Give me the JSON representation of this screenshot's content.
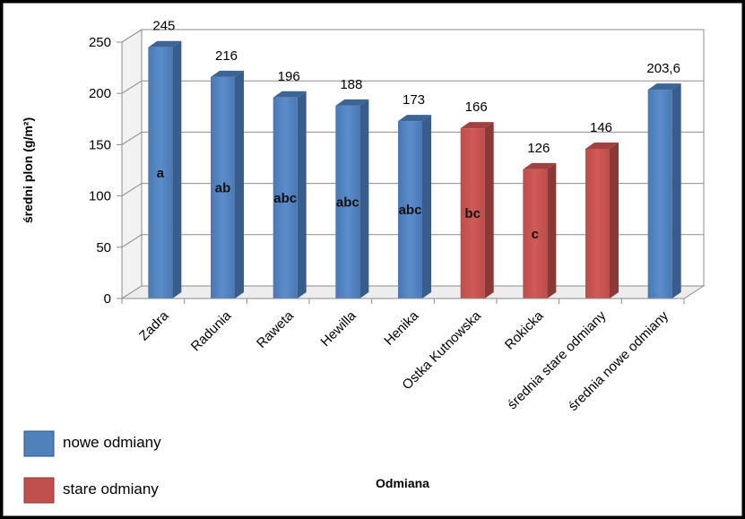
{
  "chart_data": {
    "type": "bar",
    "categories": [
      "Zadra",
      "Radunia",
      "Raweta",
      "Hewilla",
      "Henika",
      "Ostka Kutnowska",
      "Rokicka",
      "średnia stare odmiany",
      "średnia nowe odmiany"
    ],
    "values": [
      245,
      216,
      196,
      188,
      173,
      166,
      126,
      146,
      203.6
    ],
    "value_labels": [
      "245",
      "216",
      "196",
      "188",
      "173",
      "166",
      "126",
      "146",
      "203,6"
    ],
    "significance_labels": [
      "a",
      "ab",
      "abc",
      "abc",
      "abc",
      "bc",
      "c",
      "",
      ""
    ],
    "groups": [
      "nowe odmiany",
      "nowe odmiany",
      "nowe odmiany",
      "nowe odmiany",
      "nowe odmiany",
      "stare odmiany",
      "stare odmiany",
      "stare odmiany",
      "nowe odmiany"
    ],
    "legend": [
      {
        "name": "nowe odmiany",
        "color": "#4f81bd"
      },
      {
        "name": "stare odmiany",
        "color": "#c0504d"
      }
    ],
    "xlabel": "Odmiana",
    "ylabel": "średni plon (g/m²)",
    "ylim": [
      0,
      250
    ],
    "yticks": [
      "0",
      "50",
      "100",
      "150",
      "200",
      "250"
    ],
    "grid": true,
    "legend_position": "bottom-left",
    "background": "#ffffff",
    "frame_color": "#000000"
  }
}
